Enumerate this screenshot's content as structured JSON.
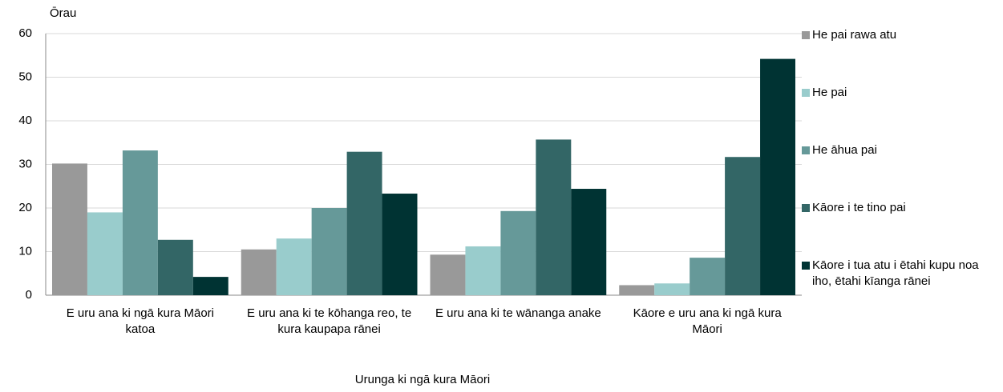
{
  "chart_data": {
    "type": "bar",
    "y_axis_label": "Ōrau",
    "x_axis_label": "Urunga ki ngā kura Māori",
    "categories": [
      "E uru ana ki ngā kura Māori katoa",
      "E uru ana ki te kōhanga reo, te kura kaupapa rānei",
      "E uru ana ki te wānanga anake",
      "Kāore e uru ana ki ngā kura Māori"
    ],
    "series": [
      {
        "name": "He pai rawa atu",
        "color": "#999999",
        "values": [
          30.2,
          10.5,
          9.3,
          2.3
        ]
      },
      {
        "name": "He pai",
        "color": "#99cccc",
        "values": [
          19,
          13,
          11.2,
          2.7
        ]
      },
      {
        "name": "He āhua pai",
        "color": "#669999",
        "values": [
          33.2,
          20,
          19.3,
          8.6
        ]
      },
      {
        "name": "Kāore i te tino pai",
        "color": "#336666",
        "values": [
          12.7,
          32.9,
          35.7,
          31.7
        ]
      },
      {
        "name": "Kāore i tua atu i ētahi kupu noa iho, ētahi kīanga rānei",
        "color": "#003333",
        "values": [
          4.2,
          23.3,
          24.4,
          54.2
        ]
      }
    ],
    "ylim": [
      0,
      60
    ],
    "yticks": [
      0,
      10,
      20,
      30,
      40,
      50,
      60
    ],
    "grid": true,
    "legend": "right"
  }
}
